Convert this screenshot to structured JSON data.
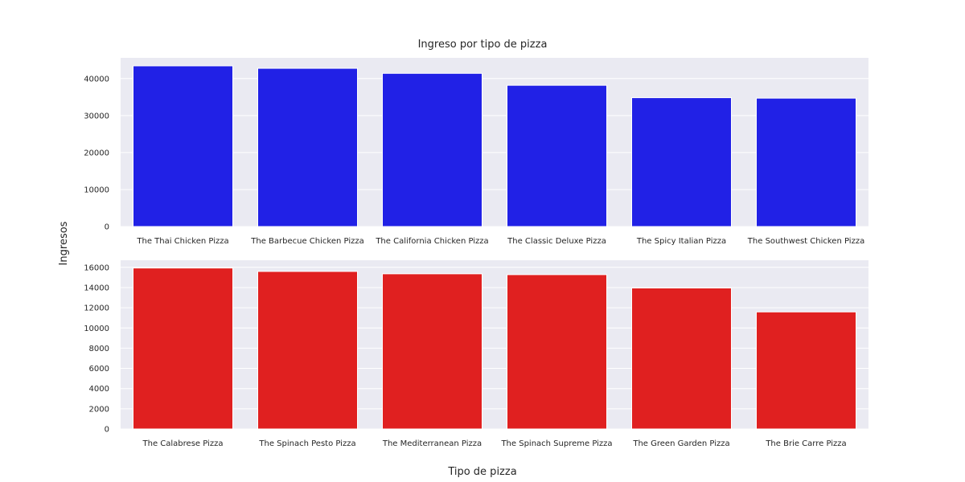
{
  "chart_data": {
    "type": "bar",
    "title": "Ingreso por tipo de pizza",
    "xlabel": "Tipo de pizza",
    "ylabel": "Ingresos",
    "grid": true,
    "subplots": [
      {
        "color": "#2121e6",
        "categories": [
          "The Thai Chicken Pizza",
          "The Barbecue Chicken Pizza",
          "The California Chicken Pizza",
          "The Classic Deluxe Pizza",
          "The Spicy Italian Pizza",
          "The Southwest Chicken Pizza"
        ],
        "values": [
          43434,
          42768,
          41410,
          38180,
          34831,
          34706
        ],
        "ylim": [
          0,
          45600
        ],
        "yticks": [
          0,
          10000,
          20000,
          30000,
          40000
        ]
      },
      {
        "color": "#e02020",
        "categories": [
          "The Calabrese Pizza",
          "The Spinach Pesto Pizza",
          "The Mediterranean Pizza",
          "The Spinach Supreme Pizza",
          "The Green Garden Pizza",
          "The Brie Carre Pizza"
        ],
        "values": [
          15935,
          15596,
          15360,
          15278,
          13956,
          11588
        ],
        "ylim": [
          0,
          16700
        ],
        "yticks": [
          0,
          2000,
          4000,
          6000,
          8000,
          10000,
          12000,
          14000,
          16000
        ]
      }
    ]
  }
}
